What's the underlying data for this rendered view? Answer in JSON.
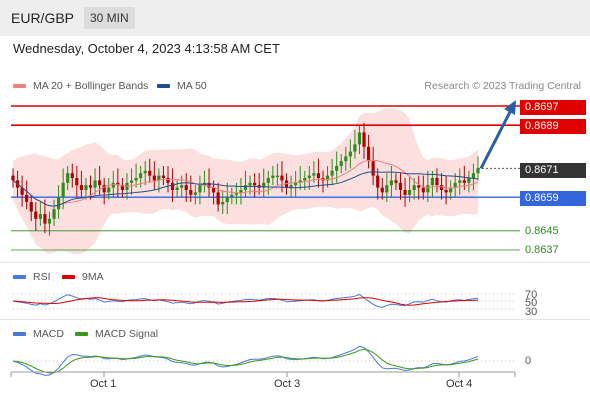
{
  "header": {
    "symbol": "EUR/GBP",
    "timeframe": "30 MIN"
  },
  "datetime": "Wednesday, October 4, 2023 4:13:58 AM CET",
  "legend": {
    "ma20": "MA 20 + Bollinger Bands",
    "ma50": "MA 50"
  },
  "credit": "Research © 2023 Trading Central",
  "price_levels": {
    "r2": "0.8697",
    "r1": "0.8689",
    "current": "0.8671",
    "pivot": "0.8659",
    "s1": "0.8645",
    "s2": "0.8637"
  },
  "rsi": {
    "label": "RSI",
    "ma_label": "9MA",
    "levels": [
      "70",
      "50",
      "30"
    ]
  },
  "macd": {
    "label": "MACD",
    "signal_label": "MACD Signal",
    "zero": "0"
  },
  "x_axis": [
    "Oct 1",
    "Oct 3",
    "Oct 4"
  ],
  "colors": {
    "ma20": "#f08080",
    "ma50": "#1f4e8c",
    "resistance": "#e00000",
    "pivot": "#3366dd",
    "support": "#2e8b1e",
    "up": "#2e8b1e",
    "down": "#b00000",
    "arrow": "#2a5fa8",
    "current": "#333333"
  },
  "chart_data": {
    "type": "candlestick",
    "price_range": [
      0.863,
      0.87
    ],
    "close_series": [
      0.8666,
      0.8663,
      0.866,
      0.8657,
      0.8653,
      0.865,
      0.8652,
      0.8648,
      0.865,
      0.8654,
      0.8659,
      0.8665,
      0.8669,
      0.8667,
      0.8664,
      0.8662,
      0.8664,
      0.8663,
      0.8666,
      0.8664,
      0.8661,
      0.8663,
      0.8665,
      0.8664,
      0.8662,
      0.8665,
      0.8666,
      0.8667,
      0.8669,
      0.867,
      0.8668,
      0.8666,
      0.8668,
      0.8667,
      0.8665,
      0.8662,
      0.8663,
      0.8664,
      0.8662,
      0.866,
      0.8661,
      0.8664,
      0.8665,
      0.8663,
      0.8661,
      0.8656,
      0.8657,
      0.8659,
      0.866,
      0.8661,
      0.8662,
      0.8664,
      0.8665,
      0.8664,
      0.8663,
      0.8665,
      0.8667,
      0.8668,
      0.8668,
      0.8666,
      0.8663,
      0.8664,
      0.8665,
      0.8666,
      0.8667,
      0.8668,
      0.8669,
      0.8667,
      0.8666,
      0.8668,
      0.867,
      0.8672,
      0.8674,
      0.8676,
      0.8678,
      0.8681,
      0.8686,
      0.868,
      0.8674,
      0.8668,
      0.8663,
      0.8661,
      0.8664,
      0.8666,
      0.8665,
      0.8662,
      0.866,
      0.8662,
      0.8664,
      0.8663,
      0.8661,
      0.8664,
      0.8667,
      0.8664,
      0.8662,
      0.8661,
      0.8663,
      0.8665,
      0.8666,
      0.8665,
      0.8667,
      0.8669,
      0.8671
    ],
    "projection": [
      0.8671,
      0.8697
    ]
  }
}
